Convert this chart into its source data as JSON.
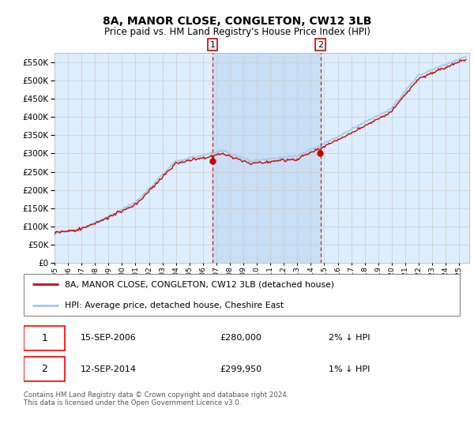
{
  "title": "8A, MANOR CLOSE, CONGLETON, CW12 3LB",
  "subtitle": "Price paid vs. HM Land Registry's House Price Index (HPI)",
  "legend_line1": "8A, MANOR CLOSE, CONGLETON, CW12 3LB (detached house)",
  "legend_line2": "HPI: Average price, detached house, Cheshire East",
  "marker1_date": "15-SEP-2006",
  "marker1_price": "£280,000",
  "marker1_hpi": "2% ↓ HPI",
  "marker2_date": "12-SEP-2014",
  "marker2_price": "£299,950",
  "marker2_hpi": "1% ↓ HPI",
  "footer": "Contains HM Land Registry data © Crown copyright and database right 2024.\nThis data is licensed under the Open Government Licence v3.0.",
  "hpi_color": "#a8c8e8",
  "price_color": "#cc0000",
  "marker_color": "#cc0000",
  "bg_color": "#ddeeff",
  "shade_color": "#c8dff5",
  "grid_color": "#cccccc",
  "ylim": [
    0,
    575000
  ],
  "yticks": [
    0,
    50000,
    100000,
    150000,
    200000,
    250000,
    300000,
    350000,
    400000,
    450000,
    500000,
    550000
  ],
  "start_year": 1995,
  "end_year": 2025,
  "marker1_x": 2006.71,
  "marker2_x": 2014.71
}
